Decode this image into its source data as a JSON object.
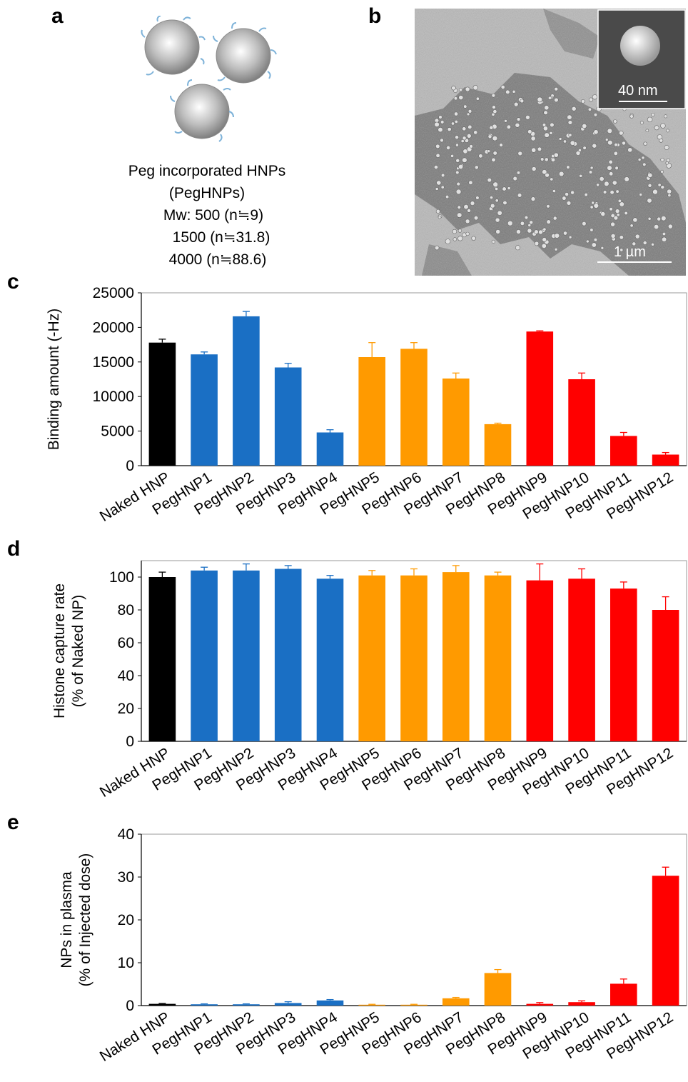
{
  "panel_labels": {
    "a": "a",
    "b": "b",
    "c": "c",
    "d": "d",
    "e": "e"
  },
  "panel_a": {
    "line1": "Peg incorporated HNPs",
    "line2": "(PegHNPs)",
    "line3": "Mw: 500 (n≒9)",
    "line4": "1500 (n≒31.8)",
    "line5": "4000 (n≒88.6)"
  },
  "panel_b": {
    "inset_scale": "40 nm",
    "main_scale": "1 µm"
  },
  "colors": {
    "black": "#000000",
    "blue": "#1a6fc4",
    "orange": "#ff9a00",
    "red": "#ff0000"
  },
  "chart_data": [
    {
      "type": "bar",
      "ylabel": "Binding amount  (-Hz)",
      "ylim": [
        0,
        25000
      ],
      "yticks": [
        0,
        5000,
        10000,
        15000,
        20000,
        25000
      ],
      "grid": false,
      "categories": [
        "Naked HNP",
        "PegHNP1",
        "PegHNP2",
        "PegHNP3",
        "PegHNP4",
        "PegHNP5",
        "PegHNP6",
        "PegHNP7",
        "PegHNP8",
        "PegHNP9",
        "PegHNP10",
        "PegHNP11",
        "PegHNP12"
      ],
      "values": [
        17800,
        16100,
        21600,
        14200,
        4800,
        15700,
        16900,
        12600,
        6000,
        19400,
        12500,
        4300,
        1600
      ],
      "errors": [
        500,
        350,
        700,
        600,
        400,
        2100,
        900,
        800,
        150,
        100,
        900,
        500,
        300
      ]
    },
    {
      "type": "bar",
      "ylabel_lines": [
        "Histone capture rate",
        "(% of Naked NP)"
      ],
      "ylim": [
        0,
        110
      ],
      "yticks": [
        0,
        20,
        40,
        60,
        80,
        100
      ],
      "grid": false,
      "categories": [
        "Naked HNP",
        "PegHNP1",
        "PegHNP2",
        "PegHNP3",
        "PegHNP4",
        "PegHNP5",
        "PegHNP6",
        "PegHNP7",
        "PegHNP8",
        "PegHNP9",
        "PegHNP10",
        "PegHNP11",
        "PegHNP12"
      ],
      "values": [
        100,
        104,
        104,
        105,
        99,
        101,
        101,
        103,
        101,
        98,
        99,
        93,
        80
      ],
      "errors": [
        3,
        2,
        4,
        2,
        2,
        3,
        4,
        4,
        2,
        10,
        6,
        4,
        8
      ]
    },
    {
      "type": "bar",
      "ylabel_lines": [
        "NPs in plasma",
        "(% of Injected dose)"
      ],
      "ylim": [
        0,
        40
      ],
      "yticks": [
        0,
        10,
        20,
        30,
        40
      ],
      "grid": false,
      "categories": [
        "Naked HNP",
        "PegHNP1",
        "PegHNP2",
        "PegHNP3",
        "PegHNP4",
        "PegHNP5",
        "PegHNP6",
        "PegHNP7",
        "PegHNP8",
        "PegHNP9",
        "PegHNP10",
        "PegHNP11",
        "PegHNP12"
      ],
      "values": [
        0.4,
        0.3,
        0.3,
        0.6,
        1.2,
        0.2,
        0.2,
        1.7,
        7.6,
        0.4,
        0.8,
        5.1,
        30.3
      ],
      "errors": [
        0.1,
        0.1,
        0.1,
        0.3,
        0.2,
        0.1,
        0.1,
        0.2,
        0.8,
        0.3,
        0.3,
        1.1,
        2.0
      ]
    }
  ]
}
